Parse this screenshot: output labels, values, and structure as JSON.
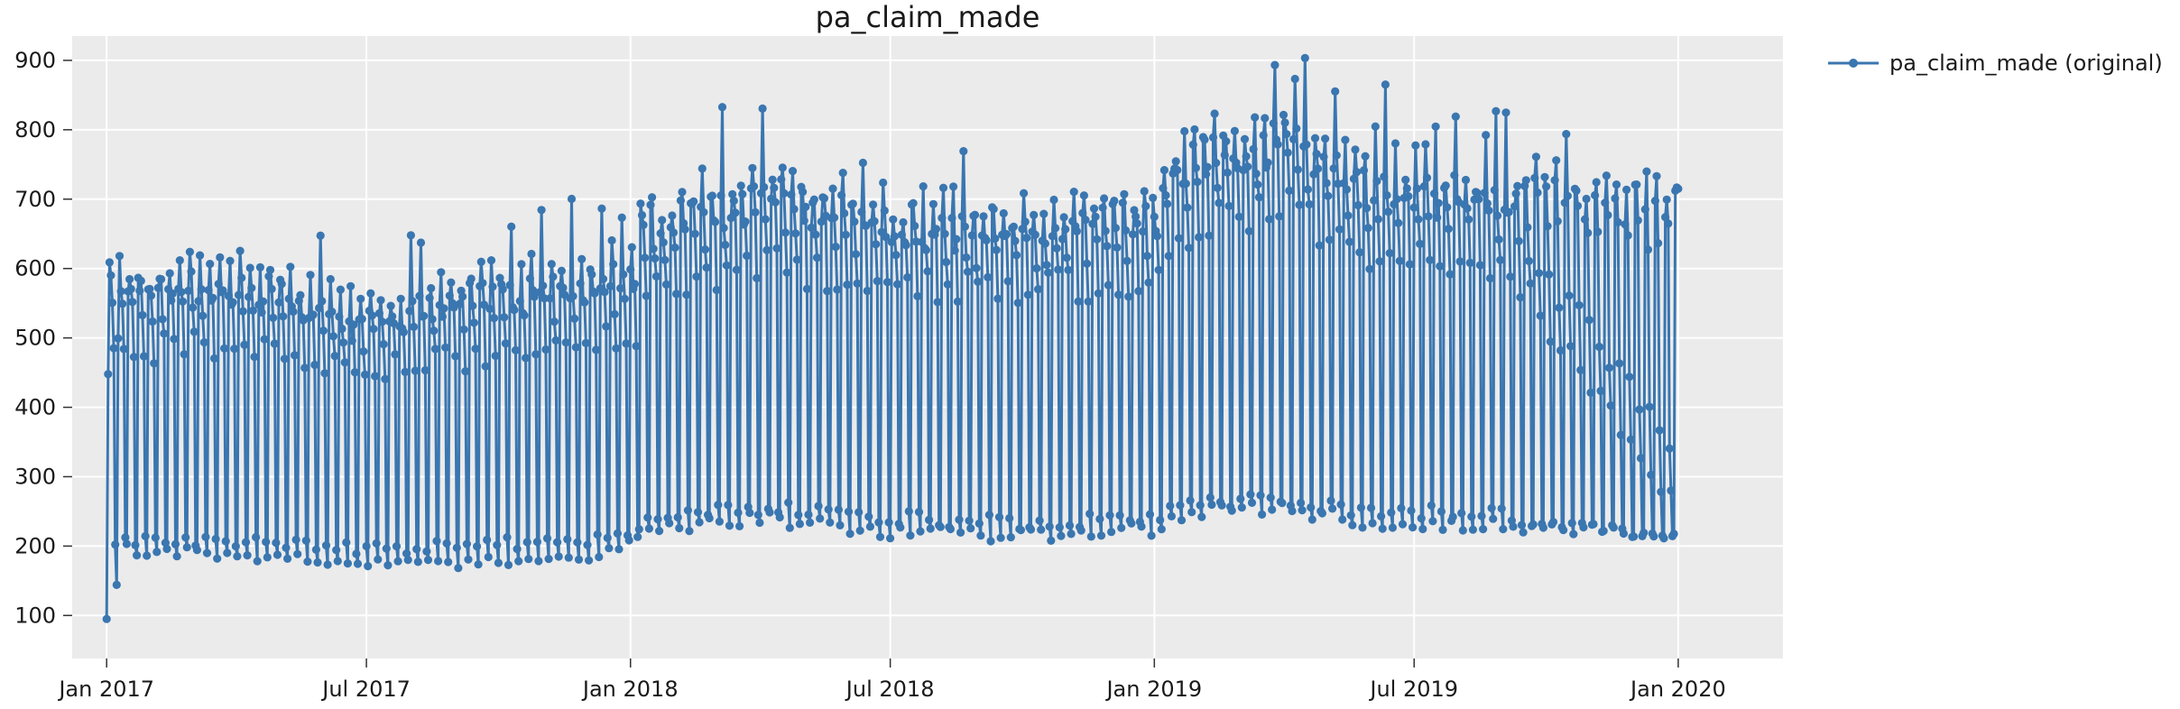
{
  "chart_data": {
    "type": "line",
    "title": "pa_claim_made",
    "xlabel": "",
    "ylabel": "",
    "x_range": [
      "2016-12-08",
      "2020-03-14"
    ],
    "ylim": [
      38,
      935
    ],
    "x_ticks": [
      {
        "date": "2017-01-01",
        "label": "Jan 2017"
      },
      {
        "date": "2017-07-01",
        "label": "Jul 2017"
      },
      {
        "date": "2018-01-01",
        "label": "Jan 2018"
      },
      {
        "date": "2018-07-01",
        "label": "Jul 2018"
      },
      {
        "date": "2019-01-01",
        "label": "Jan 2019"
      },
      {
        "date": "2019-07-01",
        "label": "Jul 2019"
      },
      {
        "date": "2020-01-01",
        "label": "Jan 2020"
      }
    ],
    "y_ticks": [
      100,
      200,
      300,
      400,
      500,
      600,
      700,
      800,
      900
    ],
    "grid": true,
    "legend_position": "top-right",
    "series": [
      {
        "name": "pa_claim_made (original)",
        "color": "#3a76b0",
        "start_date": "2017-01-01",
        "frequency": "daily",
        "weekly_profile": [
          {
            "date": "2017-01-01",
            "sun": 95,
            "mon": 438,
            "tue": 612,
            "wed": 597,
            "thu": 555,
            "fri": 488,
            "sat": 200
          },
          {
            "date": "2017-01-15",
            "sun": 195,
            "mon": 575,
            "tue": 590,
            "wed": 565,
            "thu": 540,
            "fri": 480,
            "sat": 205
          },
          {
            "date": "2017-03-01",
            "sun": 190,
            "mon": 580,
            "tue": 605,
            "wed": 570,
            "thu": 550,
            "fri": 490,
            "sat": 210
          },
          {
            "date": "2017-05-01",
            "sun": 185,
            "mon": 570,
            "tue": 600,
            "wed": 560,
            "thu": 545,
            "fri": 485,
            "sat": 205
          },
          {
            "date": "2017-07-01",
            "sun": 178,
            "mon": 520,
            "tue": 545,
            "wed": 510,
            "thu": 495,
            "fri": 450,
            "sat": 195
          },
          {
            "date": "2017-09-01",
            "sun": 175,
            "mon": 555,
            "tue": 590,
            "wed": 550,
            "thu": 530,
            "fri": 470,
            "sat": 200
          },
          {
            "date": "2017-12-01",
            "sun": 185,
            "mon": 580,
            "tue": 610,
            "wed": 570,
            "thu": 545,
            "fri": 490,
            "sat": 210
          },
          {
            "date": "2017-12-31",
            "sun": 200,
            "mon": 600,
            "tue": 620,
            "wed": 590,
            "thu": 560,
            "fri": 500,
            "sat": 215
          },
          {
            "date": "2018-01-07",
            "sun": 225,
            "mon": 665,
            "tue": 685,
            "wed": 650,
            "thu": 630,
            "fri": 570,
            "sat": 240
          },
          {
            "date": "2018-04-01",
            "sun": 240,
            "mon": 705,
            "tue": 745,
            "wed": 700,
            "thu": 675,
            "fri": 610,
            "sat": 255
          },
          {
            "date": "2018-07-01",
            "sun": 220,
            "mon": 665,
            "tue": 690,
            "wed": 655,
            "thu": 635,
            "fri": 575,
            "sat": 240
          },
          {
            "date": "2018-10-01",
            "sun": 215,
            "mon": 660,
            "tue": 690,
            "wed": 650,
            "thu": 625,
            "fri": 570,
            "sat": 235
          },
          {
            "date": "2018-12-31",
            "sun": 225,
            "mon": 680,
            "tue": 700,
            "wed": 670,
            "thu": 640,
            "fri": 580,
            "sat": 240
          },
          {
            "date": "2019-01-07",
            "sun": 245,
            "mon": 740,
            "tue": 765,
            "wed": 730,
            "thu": 705,
            "fri": 645,
            "sat": 260
          },
          {
            "date": "2019-04-01",
            "sun": 255,
            "mon": 790,
            "tue": 830,
            "wed": 780,
            "thu": 750,
            "fri": 690,
            "sat": 270
          },
          {
            "date": "2019-06-01",
            "sun": 235,
            "mon": 715,
            "tue": 750,
            "wed": 705,
            "thu": 680,
            "fri": 620,
            "sat": 250
          },
          {
            "date": "2019-09-01",
            "sun": 230,
            "mon": 705,
            "tue": 740,
            "wed": 695,
            "thu": 670,
            "fri": 610,
            "sat": 245
          },
          {
            "date": "2019-12-30",
            "sun": 215,
            "mon": 690,
            "tue": 720,
            "wed": 640,
            "thu": 345,
            "fri": 262,
            "sat": 208
          }
        ],
        "final_point": {
          "date": "2020-01-01",
          "value": 715
        }
      }
    ]
  }
}
